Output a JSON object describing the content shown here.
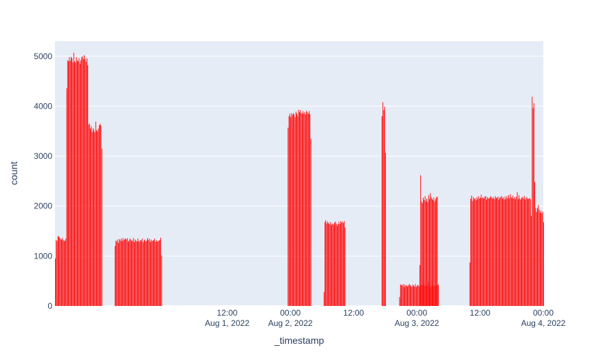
{
  "chart_data": {
    "type": "bar",
    "xlabel": "_timestamp",
    "ylabel": "count",
    "x_range": [
      "2022-07-31T03:20",
      "2022-08-04T00:00"
    ],
    "ylim": [
      0,
      5300
    ],
    "y_ticks": [
      0,
      1000,
      2000,
      3000,
      4000,
      5000
    ],
    "x_ticks": [
      {
        "at": "2022-08-01T12:00",
        "label": "12:00",
        "sublabel": "Aug 1, 2022"
      },
      {
        "at": "2022-08-02T00:00",
        "label": "00:00",
        "sublabel": "Aug 2, 2022"
      },
      {
        "at": "2022-08-02T12:00",
        "label": "12:00",
        "sublabel": ""
      },
      {
        "at": "2022-08-03T00:00",
        "label": "00:00",
        "sublabel": "Aug 3, 2022"
      },
      {
        "at": "2022-08-03T12:00",
        "label": "12:00",
        "sublabel": ""
      },
      {
        "at": "2022-08-04T00:00",
        "label": "00:00",
        "sublabel": "Aug 4, 2022"
      }
    ],
    "bar_color": "#ff0000",
    "plot_background": "#e5ecf6",
    "grid": true,
    "series": [
      {
        "segments": [
          {
            "start": "2022-07-31T03:20",
            "values": [
              950,
              1320,
              1300,
              1400,
              1390,
              1370,
              1340,
              1330,
              1360,
              1320,
              1300,
              1310,
              1350
            ]
          },
          {
            "start": "2022-07-31T05:30",
            "values": [
              4360,
              4920,
              4900,
              4980,
              4910,
              4990,
              4960,
              4880,
              5070,
              4900,
              4870,
              4980,
              4920,
              4900,
              4960,
              4850,
              4920,
              4980,
              5000,
              4940,
              5020,
              4950,
              4890,
              4960,
              4820
            ]
          },
          {
            "start": "2022-07-31T09:40",
            "values": [
              3630,
              3650,
              3550,
              3600,
              3480,
              3560,
              3520,
              3480,
              3690,
              3520,
              3490,
              3550,
              3620,
              3650,
              3610,
              3150
            ]
          },
          {
            "start": "2022-07-31T14:40",
            "values": [
              1200,
              1310,
              1290,
              1330,
              1260,
              1340,
              1310,
              1350,
              1300,
              1360,
              1320,
              1340,
              1350,
              1330,
              1360,
              1290,
              1310,
              1350,
              1330,
              1300,
              1310,
              1360,
              1280,
              1330,
              1310,
              1290,
              1350,
              1300,
              1280,
              1320,
              1310,
              1350,
              1270,
              1310,
              1330,
              1290,
              1310,
              1360,
              1320,
              1350,
              1280,
              1330,
              1300,
              1310,
              1320,
              1350,
              1280,
              1320,
              1290,
              1300,
              1310,
              1320,
              1370,
              1010
            ]
          },
          {
            "start": "2022-08-01T23:30",
            "values": [
              3570,
              3800,
              3850,
              3780,
              3860,
              3820,
              3860,
              3840,
              3780,
              3890,
              3850,
              3800,
              3930,
              3880,
              3920,
              3870,
              3850,
              3900,
              3850,
              3880,
              3830,
              3910,
              3880,
              3850,
              3900,
              3840,
              3350
            ]
          },
          {
            "start": "2022-08-02T06:20",
            "values": [
              280,
              1680,
              1720,
              1650,
              1690,
              1660,
              1640,
              1680,
              1620,
              1650,
              1640,
              1630,
              1670,
              1690,
              1650,
              1610,
              1640,
              1690,
              1640,
              1700,
              1670,
              1690,
              1660,
              1700,
              1570
            ]
          },
          {
            "start": "2022-08-02T17:20",
            "values": [
              3800,
              4080,
              3920,
              3990,
              3070
            ]
          },
          {
            "start": "2022-08-02T20:40",
            "values": [
              180,
              430,
              420,
              410,
              440,
              380,
              430,
              400,
              420,
              390,
              410,
              440,
              420,
              400,
              380,
              430,
              410,
              390,
              440,
              380,
              410,
              420,
              400,
              380,
              430,
              410,
              420,
              440,
              400,
              430,
              390,
              410,
              420,
              480,
              430,
              380,
              400,
              420,
              380,
              410,
              400,
              390,
              420,
              440,
              410
            ]
          },
          {
            "start": "2022-08-03T00:30",
            "values": [
              820,
              2620,
              2100,
              2060,
              2170,
              2120,
              2200,
              2100,
              2150,
              2080,
              2220,
              2140,
              2260,
              2180,
              2150,
              2120,
              2170,
              2090,
              2140,
              2180,
              2190,
              430
            ]
          },
          {
            "start": "2022-08-03T10:00",
            "values": [
              870,
              2150,
              2210,
              2100,
              2180,
              2140,
              2160,
              2120,
              2180,
              2140,
              2200,
              2150,
              2170,
              2230,
              2160,
              2180,
              2150,
              2190,
              2200,
              2130,
              2180,
              2160,
              2150,
              2180,
              2200,
              2170,
              2150,
              2180,
              2140,
              2200,
              2160,
              2170,
              2190,
              2130,
              2170,
              2180,
              2200,
              2150,
              2180,
              2130,
              2190,
              2140,
              2200,
              2160,
              2220,
              2150,
              2240,
              2180,
              2160,
              2210,
              2150,
              2180,
              2140,
              2190,
              2280,
              2140,
              2220,
              2150,
              2130,
              2170,
              2180,
              2150,
              2200,
              2130,
              2160,
              2180,
              2140,
              2150,
              2160,
              2140,
              1800,
              4190,
              3960,
              4060,
              2480,
              1960,
              1880,
              1960,
              2020,
              1930,
              1870,
              1910,
              1850,
              1890,
              1680
            ]
          }
        ]
      }
    ]
  }
}
